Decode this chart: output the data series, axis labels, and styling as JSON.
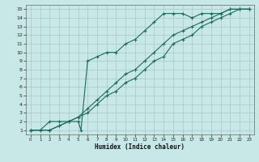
{
  "xlabel": "Humidex (Indice chaleur)",
  "bg_color": "#c8e8e8",
  "grid_color": "#a8c8c8",
  "line_color": "#1a6b5a",
  "xlim": [
    -0.5,
    23.5
  ],
  "ylim": [
    0.5,
    15.5
  ],
  "xticks": [
    0,
    1,
    2,
    3,
    4,
    5,
    6,
    7,
    8,
    9,
    10,
    11,
    12,
    13,
    14,
    15,
    16,
    17,
    18,
    19,
    20,
    21,
    22,
    23
  ],
  "yticks": [
    1,
    2,
    3,
    4,
    5,
    6,
    7,
    8,
    9,
    10,
    11,
    12,
    13,
    14,
    15
  ],
  "line1_x": [
    0,
    1,
    2,
    3,
    4,
    5,
    5.3,
    6,
    7,
    8,
    9,
    10,
    11,
    12,
    13,
    14,
    15,
    16,
    17,
    18,
    19,
    20,
    21,
    22,
    23
  ],
  "line1_y": [
    1,
    1,
    2,
    2,
    2,
    2,
    1,
    9,
    9.5,
    10,
    10,
    11,
    11.5,
    12.5,
    13.5,
    14.5,
    14.5,
    14.5,
    14,
    14.5,
    14.5,
    14.5,
    15,
    15,
    15
  ],
  "line2_x": [
    0,
    2,
    3,
    4,
    5,
    6,
    7,
    8,
    9,
    10,
    11,
    12,
    13,
    14,
    15,
    16,
    17,
    18,
    19,
    20,
    21,
    22,
    23
  ],
  "line2_y": [
    1,
    1,
    1.5,
    2,
    2.5,
    3.5,
    4.5,
    5.5,
    6.5,
    7.5,
    8,
    9,
    10,
    11,
    12,
    12.5,
    13,
    13.5,
    14,
    14.5,
    15,
    15,
    15
  ],
  "line3_x": [
    0,
    2,
    3,
    4,
    5,
    6,
    7,
    8,
    9,
    10,
    11,
    12,
    13,
    14,
    15,
    16,
    17,
    18,
    19,
    20,
    21,
    22,
    23
  ],
  "line3_y": [
    1,
    1,
    1.5,
    2,
    2.5,
    3,
    4,
    5,
    5.5,
    6.5,
    7,
    8,
    9,
    9.5,
    11,
    11.5,
    12,
    13,
    13.5,
    14,
    14.5,
    15,
    15
  ]
}
